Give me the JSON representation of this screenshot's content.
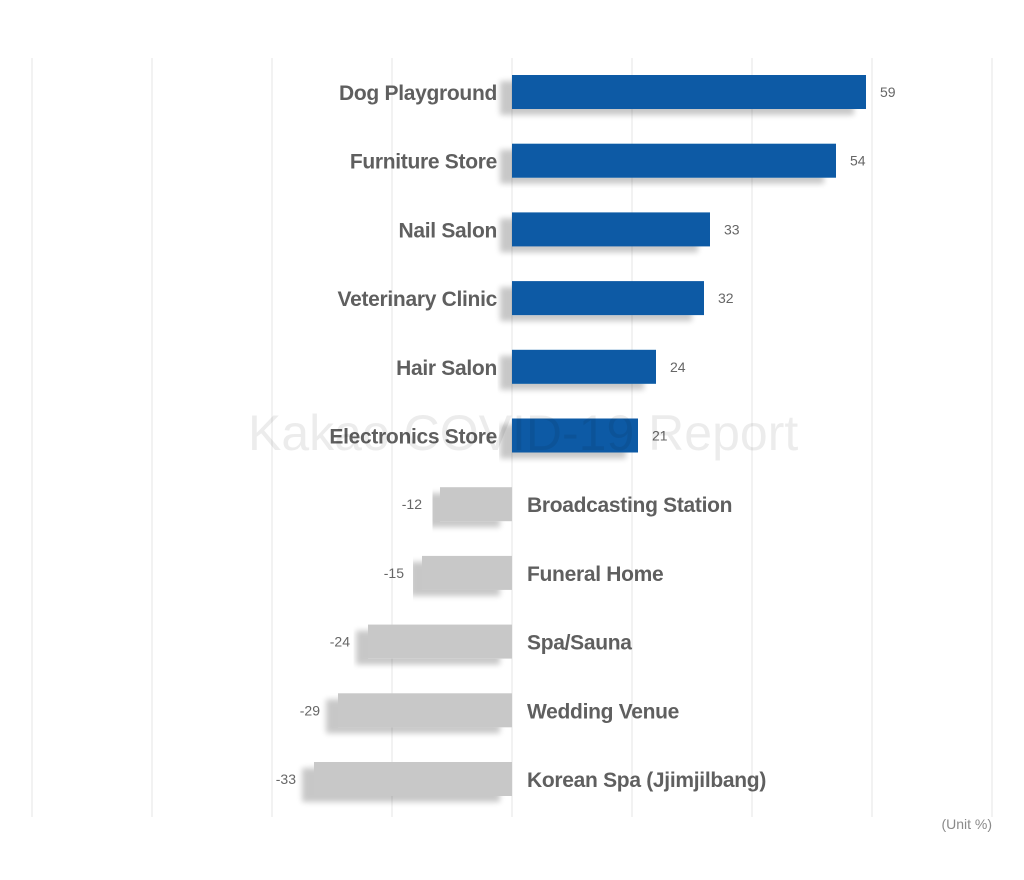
{
  "chart_data": {
    "type": "bar",
    "orientation": "horizontal",
    "categories": [
      "Dog Playground",
      "Furniture Store",
      "Nail Salon",
      "Veterinary Clinic",
      "Hair Salon",
      "Electronics Store",
      "Broadcasting Station",
      "Funeral Home",
      "Spa/Sauna",
      "Wedding Venue",
      "Korean Spa (Jjimjilbang)"
    ],
    "values": [
      59,
      54,
      33,
      32,
      24,
      21,
      -12,
      -15,
      -24,
      -29,
      -33
    ],
    "value_labels": [
      "59",
      "54",
      "33",
      "32",
      "24",
      "21",
      "-12",
      "-15",
      "-24",
      "-29",
      "-33"
    ],
    "xlim": [
      -80,
      80
    ],
    "grid": true,
    "colors": {
      "positive": "#0b5aa5",
      "negative": "#c8c8c8",
      "grid": "#e6e6e6",
      "label": "#5f5f5f",
      "value": "#666666"
    },
    "unit_label": "(Unit %)",
    "watermark": "Kakao COVID-19 Report"
  }
}
